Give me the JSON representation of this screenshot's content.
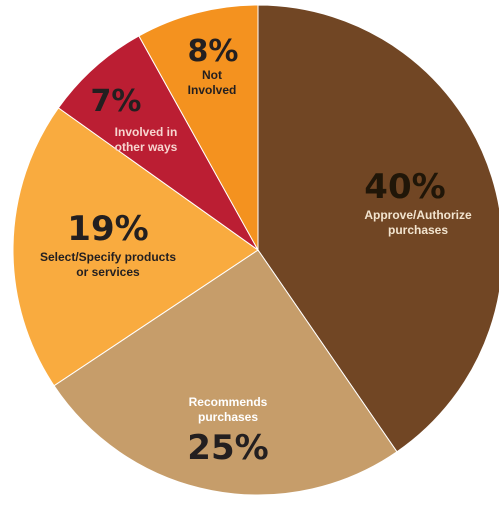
{
  "chart_data": {
    "type": "pie",
    "start": "top, clockwise",
    "slices": [
      {
        "label_lines": [
          "Approve/Authorize",
          "purchases"
        ],
        "pct_text": "40%",
        "value": 40,
        "color": "#714624",
        "text_color": "#201608",
        "label_color": "#f2e4cf"
      },
      {
        "label_lines": [
          "Recommends",
          "purchases"
        ],
        "pct_text": "25%",
        "value": 25,
        "color": "#c69d6a",
        "text_color": "#231f20",
        "label_color": "#ffffff"
      },
      {
        "label_lines": [
          "Select/Specify products",
          "or services"
        ],
        "pct_text": "19%",
        "value": 19,
        "color": "#f9ab3f",
        "text_color": "#231f20",
        "label_color": "#231f20"
      },
      {
        "label_lines": [
          "Involved in",
          "other ways"
        ],
        "pct_text": "7%",
        "value": 7,
        "color": "#bb1e33",
        "text_color": "#231f20",
        "label_color": "#f7d5cf"
      },
      {
        "label_lines": [
          "Not",
          "Involved"
        ],
        "pct_text": "8%",
        "value": 8,
        "color": "#f4921f",
        "text_color": "#231f20",
        "label_color": "#231f20"
      }
    ]
  }
}
